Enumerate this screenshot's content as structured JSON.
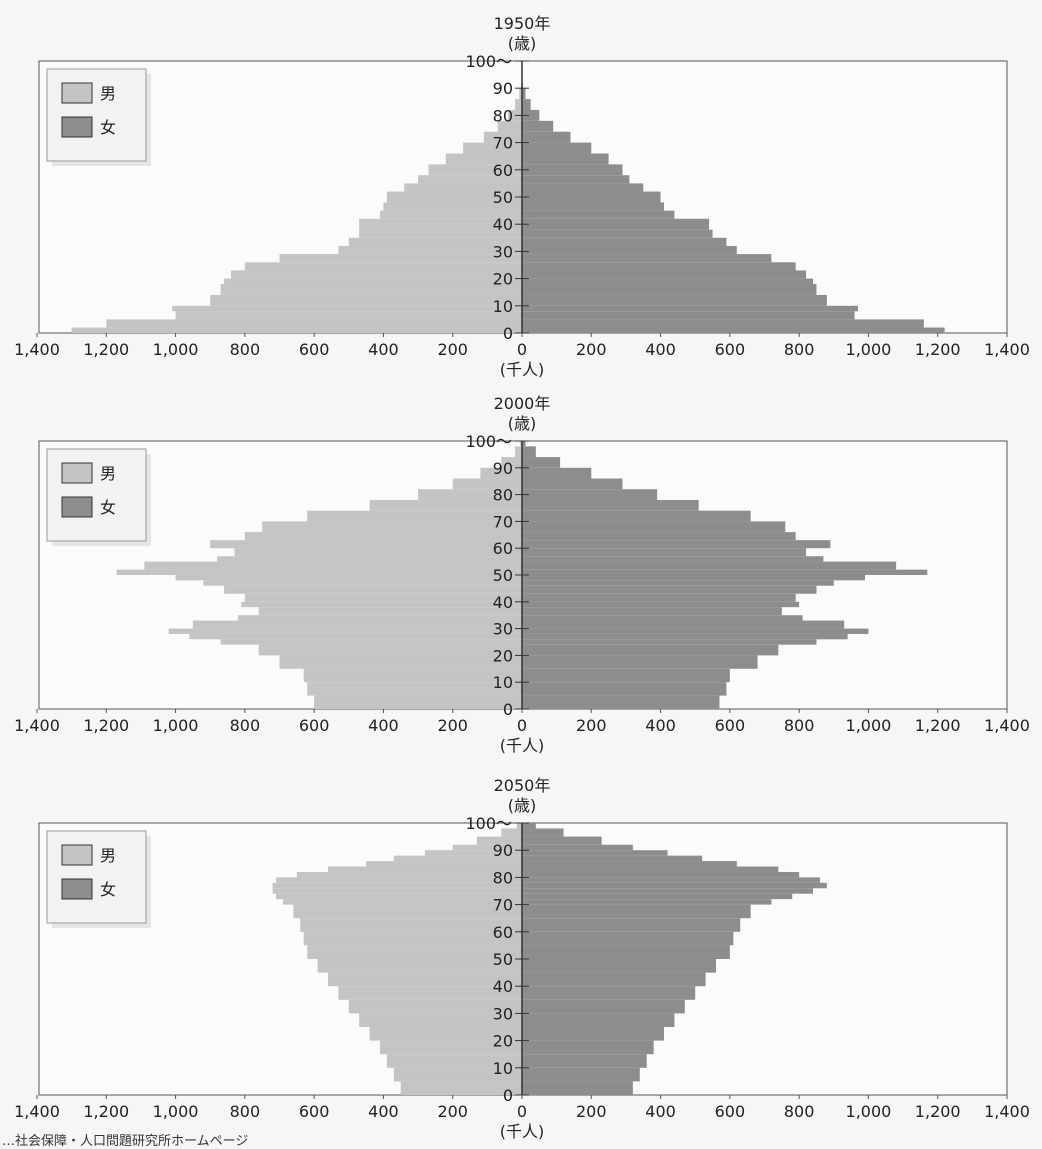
{
  "footer_note": "…社会保障・人口問題研究所ホームページ",
  "chart_data": [
    {
      "type": "bar",
      "orientation": "horizontal-population-pyramid",
      "title": "1950年",
      "ylabel": "(歳)",
      "xlabel": "(千人)",
      "xlim": [
        -1400,
        1400
      ],
      "ylim": [
        0,
        100
      ],
      "x_tick_labels": [
        "1,400",
        "1,200",
        "1,000",
        "800",
        "600",
        "400",
        "200",
        "0",
        "200",
        "400",
        "600",
        "800",
        "1,000",
        "1,200",
        "1,400"
      ],
      "y_tick_labels": [
        "0",
        "10",
        "20",
        "30",
        "40",
        "50",
        "60",
        "70",
        "80",
        "90",
        "100〜"
      ],
      "legend": {
        "position": "top-left",
        "entries": [
          "男",
          "女"
        ]
      },
      "colors": {
        "男": "#c4c4c4",
        "女": "#8d8d8d"
      },
      "ages": [
        0,
        2,
        5,
        8,
        10,
        14,
        18,
        20,
        23,
        26,
        29,
        32,
        35,
        38,
        42,
        45,
        48,
        52,
        55,
        58,
        62,
        66,
        70,
        74,
        78,
        82,
        86,
        90
      ],
      "series": [
        {
          "name": "男",
          "values": [
            1300,
            1200,
            1000,
            1010,
            900,
            870,
            860,
            840,
            800,
            700,
            530,
            500,
            470,
            470,
            410,
            400,
            390,
            340,
            300,
            270,
            220,
            170,
            110,
            70,
            40,
            20,
            8,
            2
          ]
        },
        {
          "name": "女",
          "values": [
            1220,
            1160,
            960,
            970,
            880,
            850,
            840,
            820,
            790,
            720,
            620,
            590,
            550,
            540,
            440,
            410,
            400,
            350,
            310,
            290,
            250,
            200,
            140,
            90,
            50,
            25,
            10,
            3
          ]
        }
      ]
    },
    {
      "type": "bar",
      "orientation": "horizontal-population-pyramid",
      "title": "2000年",
      "ylabel": "(歳)",
      "xlabel": "(千人)",
      "xlim": [
        -1400,
        1400
      ],
      "ylim": [
        0,
        100
      ],
      "x_tick_labels": [
        "1,400",
        "1,200",
        "1,000",
        "800",
        "600",
        "400",
        "200",
        "0",
        "200",
        "400",
        "600",
        "800",
        "1,000",
        "1,200",
        "1,400"
      ],
      "y_tick_labels": [
        "0",
        "10",
        "20",
        "30",
        "40",
        "50",
        "60",
        "70",
        "80",
        "90",
        "100〜"
      ],
      "legend": {
        "position": "top-left",
        "entries": [
          "男",
          "女"
        ]
      },
      "colors": {
        "男": "#c4c4c4",
        "女": "#8d8d8d"
      },
      "ages": [
        0,
        5,
        10,
        15,
        20,
        24,
        26,
        28,
        30,
        33,
        35,
        38,
        40,
        43,
        46,
        48,
        50,
        52,
        55,
        57,
        60,
        63,
        66,
        70,
        74,
        78,
        82,
        86,
        90,
        94,
        98
      ],
      "series": [
        {
          "name": "男",
          "values": [
            600,
            620,
            630,
            700,
            760,
            870,
            960,
            1020,
            950,
            820,
            760,
            810,
            800,
            860,
            920,
            1000,
            1170,
            1090,
            880,
            830,
            900,
            800,
            750,
            620,
            440,
            300,
            200,
            120,
            60,
            20,
            5
          ]
        },
        {
          "name": "女",
          "values": [
            570,
            590,
            600,
            680,
            740,
            850,
            940,
            1000,
            930,
            810,
            750,
            800,
            790,
            850,
            900,
            990,
            1170,
            1080,
            870,
            820,
            890,
            790,
            760,
            660,
            510,
            390,
            290,
            200,
            110,
            40,
            10
          ]
        }
      ]
    },
    {
      "type": "bar",
      "orientation": "horizontal-population-pyramid",
      "title": "2050年",
      "ylabel": "(歳)",
      "xlabel": "(千人)",
      "xlim": [
        -1400,
        1400
      ],
      "ylim": [
        0,
        100
      ],
      "x_tick_labels": [
        "1,400",
        "1,200",
        "1,000",
        "800",
        "600",
        "400",
        "200",
        "0",
        "200",
        "400",
        "600",
        "800",
        "1,000",
        "1,200",
        "1,400"
      ],
      "y_tick_labels": [
        "0",
        "10",
        "20",
        "30",
        "40",
        "50",
        "60",
        "70",
        "80",
        "90",
        "100〜"
      ],
      "legend": {
        "position": "top-left",
        "entries": [
          "男",
          "女"
        ]
      },
      "colors": {
        "男": "#c4c4c4",
        "女": "#8d8d8d"
      },
      "ages": [
        0,
        5,
        10,
        15,
        20,
        25,
        30,
        35,
        40,
        45,
        50,
        55,
        60,
        65,
        70,
        72,
        74,
        76,
        78,
        80,
        82,
        84,
        86,
        88,
        90,
        92,
        95,
        98
      ],
      "series": [
        {
          "name": "男",
          "values": [
            350,
            370,
            390,
            410,
            440,
            470,
            500,
            530,
            560,
            590,
            620,
            630,
            640,
            660,
            690,
            710,
            720,
            720,
            710,
            650,
            560,
            450,
            370,
            280,
            200,
            130,
            60,
            15
          ]
        },
        {
          "name": "女",
          "values": [
            320,
            340,
            360,
            380,
            410,
            440,
            470,
            500,
            530,
            560,
            600,
            610,
            630,
            660,
            720,
            780,
            840,
            880,
            860,
            800,
            740,
            620,
            520,
            420,
            320,
            230,
            120,
            40
          ]
        }
      ]
    }
  ]
}
